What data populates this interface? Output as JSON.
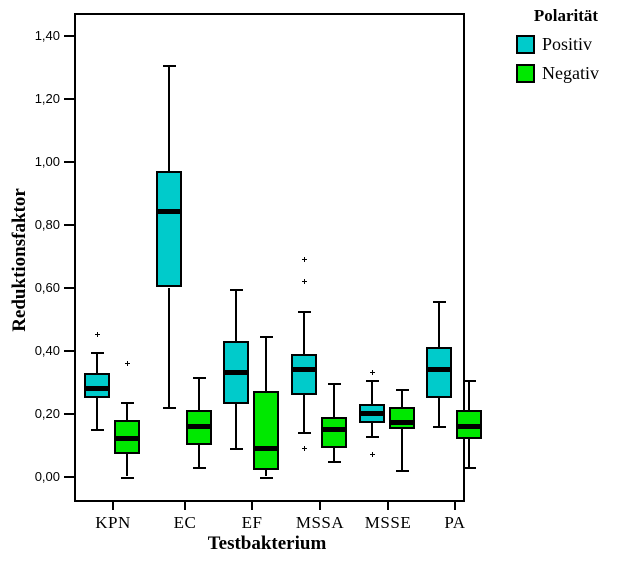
{
  "chart_data": {
    "type": "boxplot",
    "title": "",
    "xlabel": "Testbakterium",
    "ylabel": "Reduktionsfaktor",
    "categories": [
      "KPN",
      "EC",
      "EF",
      "MSSA",
      "MSSE",
      "PA"
    ],
    "ylim": [
      0.0,
      1.4
    ],
    "grid": false,
    "legend_position": "outside-top-right",
    "y_ticks": [
      {
        "label": "1,40",
        "value": 1.4
      },
      {
        "label": "1,20",
        "value": 1.2
      },
      {
        "label": "1,00",
        "value": 1.0
      },
      {
        "label": "0,80",
        "value": 0.8
      },
      {
        "label": "0,60",
        "value": 0.6
      },
      {
        "label": "0,40",
        "value": 0.4
      },
      {
        "label": "0,20",
        "value": 0.2
      },
      {
        "label": "0,00",
        "value": 0.0
      }
    ],
    "legend": {
      "title": "Polarität",
      "entries": [
        {
          "label": "Positiv",
          "color": "#00CBCB"
        },
        {
          "label": "Negativ",
          "color": "#00E800"
        }
      ]
    },
    "series": [
      {
        "name": "Positiv",
        "color": "#00CBCB",
        "boxes": [
          {
            "category": "KPN",
            "whisker_low": 0.15,
            "q1": 0.25,
            "median": 0.28,
            "q3": 0.33,
            "whisker_high": 0.39,
            "outliers": [
              0.45
            ]
          },
          {
            "category": "EC",
            "whisker_low": 0.22,
            "q1": 0.6,
            "median": 0.84,
            "q3": 0.97,
            "whisker_high": 1.3,
            "outliers": []
          },
          {
            "category": "EF",
            "whisker_low": 0.09,
            "q1": 0.23,
            "median": 0.33,
            "q3": 0.43,
            "whisker_high": 0.59,
            "outliers": []
          },
          {
            "category": "MSSA",
            "whisker_low": 0.14,
            "q1": 0.26,
            "median": 0.34,
            "q3": 0.39,
            "whisker_high": 0.52,
            "outliers": [
              0.09,
              0.62,
              0.69
            ]
          },
          {
            "category": "MSSE",
            "whisker_low": 0.13,
            "q1": 0.17,
            "median": 0.2,
            "q3": 0.23,
            "whisker_high": 0.3,
            "outliers": [
              0.07,
              0.33
            ]
          },
          {
            "category": "PA",
            "whisker_low": 0.16,
            "q1": 0.25,
            "median": 0.34,
            "q3": 0.41,
            "whisker_high": 0.55,
            "outliers": []
          }
        ]
      },
      {
        "name": "Negativ",
        "color": "#00E800",
        "boxes": [
          {
            "category": "KPN",
            "whisker_low": 0.0,
            "q1": 0.07,
            "median": 0.12,
            "q3": 0.18,
            "whisker_high": 0.23,
            "outliers": [
              0.36
            ]
          },
          {
            "category": "EC",
            "whisker_low": 0.03,
            "q1": 0.1,
            "median": 0.16,
            "q3": 0.21,
            "whisker_high": 0.31,
            "outliers": []
          },
          {
            "category": "EF",
            "whisker_low": 0.0,
            "q1": 0.02,
            "median": 0.09,
            "q3": 0.27,
            "whisker_high": 0.44,
            "outliers": []
          },
          {
            "category": "MSSA",
            "whisker_low": 0.05,
            "q1": 0.09,
            "median": 0.15,
            "q3": 0.19,
            "whisker_high": 0.29,
            "outliers": []
          },
          {
            "category": "MSSE",
            "whisker_low": 0.02,
            "q1": 0.15,
            "median": 0.17,
            "q3": 0.22,
            "whisker_high": 0.27,
            "outliers": []
          },
          {
            "category": "PA",
            "whisker_low": 0.03,
            "q1": 0.12,
            "median": 0.16,
            "q3": 0.21,
            "whisker_high": 0.3,
            "outliers": []
          }
        ]
      }
    ]
  }
}
